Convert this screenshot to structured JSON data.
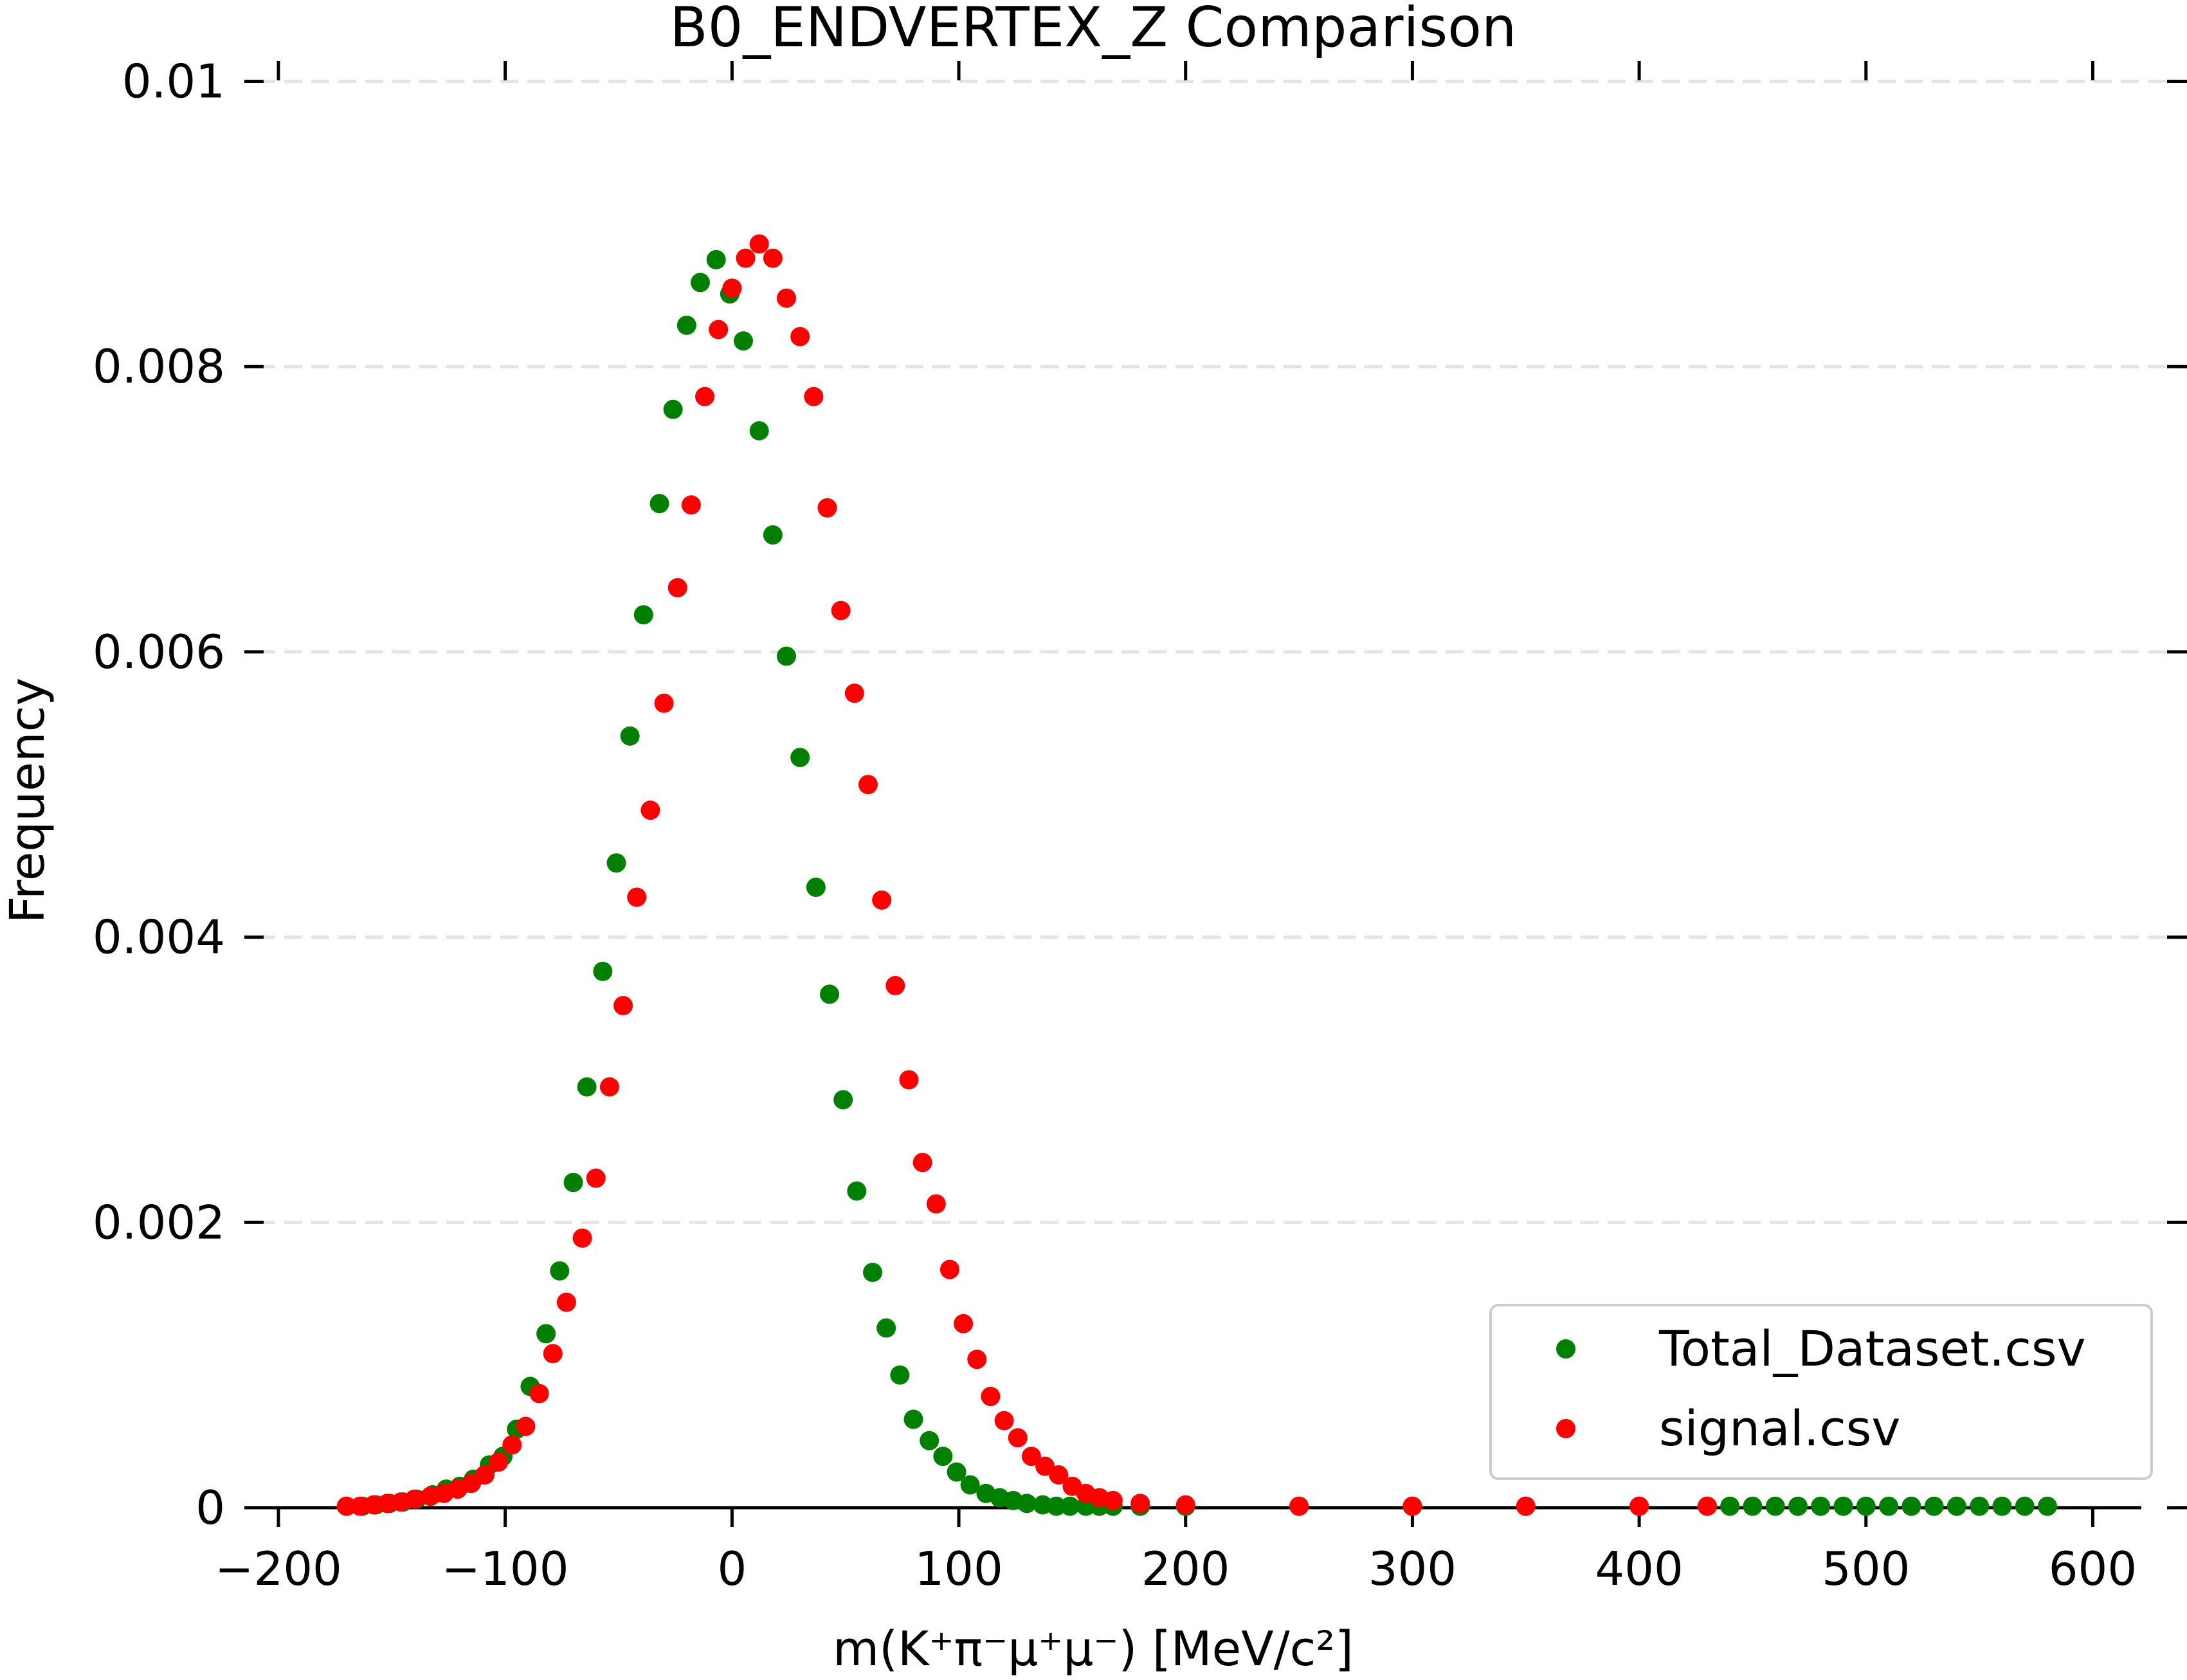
{
  "chart_data": {
    "type": "scatter",
    "title": "B0_ENDVERTEX_Z Comparison",
    "xlabel": "m(K⁺π⁻μ⁺μ⁻) [MeV/c²]",
    "ylabel": "Frequency",
    "xlim": [
      -200,
      620
    ],
    "ylim": [
      0,
      0.0103
    ],
    "x_ticks": [
      -200,
      -100,
      0,
      100,
      200,
      300,
      400,
      500,
      600
    ],
    "x_tick_labels": [
      "−200",
      "−100",
      "0",
      "100",
      "200",
      "300",
      "400",
      "500",
      "600"
    ],
    "y_ticks": [
      0,
      0.002,
      0.004,
      0.006,
      0.008,
      0.01
    ],
    "y_tick_labels": [
      "0",
      "0.002",
      "0.004",
      "0.006",
      "0.008",
      "0.01"
    ],
    "grid": "horizontal dashed",
    "legend_position": "lower-right",
    "series": [
      {
        "name": "Total_Dataset.csv",
        "color": "#008000",
        "x": [
          -170,
          -163,
          -157,
          -151,
          -145,
          -139,
          -132,
          -126,
          -120,
          -114,
          -107,
          -101,
          -95,
          -89,
          -82,
          -76,
          -70,
          -64,
          -57,
          -51,
          -45,
          -39,
          -32,
          -26,
          -20,
          -14,
          -7,
          -1,
          5,
          12,
          18,
          24,
          30,
          37,
          43,
          49,
          55,
          62,
          68,
          74,
          80,
          87,
          93,
          99,
          105,
          112,
          118,
          124,
          130,
          137,
          143,
          149,
          156,
          162,
          168,
          180,
          200,
          250,
          300,
          350,
          400,
          430,
          440,
          450,
          460,
          470,
          480,
          490,
          500,
          510,
          520,
          530,
          540,
          550,
          560,
          570,
          580
        ],
        "y": [
          1e-05,
          1e-05,
          2e-05,
          3e-05,
          4e-05,
          6e-05,
          9e-05,
          0.00013,
          0.00015,
          0.0002,
          0.0003,
          0.00036,
          0.00055,
          0.00085,
          0.00122,
          0.00166,
          0.00228,
          0.00295,
          0.00376,
          0.00452,
          0.00541,
          0.00626,
          0.00704,
          0.0077,
          0.00829,
          0.00859,
          0.00875,
          0.00851,
          0.00818,
          0.00755,
          0.00682,
          0.00597,
          0.00526,
          0.00435,
          0.0036,
          0.00286,
          0.00222,
          0.00165,
          0.00126,
          0.00093,
          0.00062,
          0.00047,
          0.00036,
          0.00025,
          0.00016,
          0.0001,
          7e-05,
          5e-05,
          3e-05,
          2e-05,
          1e-05,
          1e-05,
          1e-05,
          1e-05,
          1e-05,
          1e-05,
          1e-05,
          1e-05,
          1e-05,
          1e-05,
          1e-05,
          1e-05,
          1e-05,
          1e-05,
          1e-05,
          1e-05,
          1e-05,
          1e-05,
          1e-05,
          1e-05,
          1e-05,
          1e-05,
          1e-05,
          1e-05,
          1e-05,
          1e-05,
          1e-05
        ]
      },
      {
        "name": "signal.csv",
        "color": "#ff0000",
        "x": [
          -170,
          -164,
          -158,
          -152,
          -146,
          -140,
          -133,
          -127,
          -121,
          -115,
          -109,
          -103,
          -97,
          -91,
          -85,
          -79,
          -73,
          -66,
          -60,
          -54,
          -48,
          -42,
          -36,
          -30,
          -24,
          -18,
          -12,
          -6,
          0,
          6,
          12,
          18,
          24,
          30,
          36,
          42,
          48,
          54,
          60,
          66,
          72,
          78,
          84,
          90,
          96,
          102,
          108,
          114,
          120,
          126,
          132,
          138,
          144,
          150,
          156,
          162,
          168,
          180,
          200,
          250,
          300,
          350,
          400,
          430
        ],
        "y": [
          1e-05,
          1e-05,
          2e-05,
          3e-05,
          4e-05,
          6e-05,
          8e-05,
          0.0001,
          0.00013,
          0.00017,
          0.00023,
          0.00032,
          0.00044,
          0.00057,
          0.0008,
          0.00108,
          0.00144,
          0.00189,
          0.00231,
          0.00295,
          0.00352,
          0.00428,
          0.00489,
          0.00564,
          0.00645,
          0.00703,
          0.00779,
          0.00826,
          0.00855,
          0.00876,
          0.00886,
          0.00876,
          0.00848,
          0.00821,
          0.00779,
          0.00701,
          0.00629,
          0.00571,
          0.00507,
          0.00426,
          0.00366,
          0.003,
          0.00242,
          0.00213,
          0.00167,
          0.00129,
          0.00104,
          0.00078,
          0.00061,
          0.00049,
          0.00036,
          0.00029,
          0.00023,
          0.00015,
          0.0001,
          7e-05,
          5e-05,
          3e-05,
          2e-05,
          1e-05,
          1e-05,
          1e-05,
          1e-05,
          1e-05
        ]
      }
    ]
  }
}
